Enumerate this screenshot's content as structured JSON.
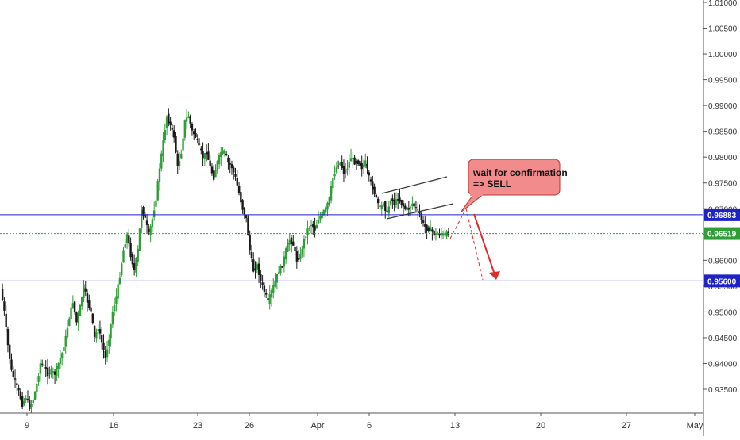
{
  "chart_data": {
    "type": "candlestick",
    "title": "",
    "xlabel": "",
    "ylabel": "",
    "ylim": [
      0.9315,
      1.0105
    ],
    "grid": false,
    "x_tick_labels": [
      "9",
      "16",
      "23",
      "26",
      "Apr",
      "6",
      "13",
      "20",
      "27",
      "May"
    ],
    "y_tick_labels": [
      "1.01000",
      "1.00500",
      "1.00000",
      "0.99500",
      "0.99000",
      "0.98500",
      "0.98000",
      "0.97500",
      "0.97000",
      "0.96500",
      "0.96000",
      "0.95500",
      "0.95000",
      "0.94500",
      "0.94000",
      "0.93500"
    ],
    "y_tick_values": [
      1.01,
      1.005,
      1.0,
      0.995,
      0.99,
      0.985,
      0.98,
      0.975,
      0.97,
      0.965,
      0.96,
      0.955,
      0.95,
      0.945,
      0.94,
      0.935
    ],
    "price_path": [
      0.9545,
      0.95,
      0.9435,
      0.9385,
      0.9365,
      0.9345,
      0.932,
      0.9335,
      0.9315,
      0.933,
      0.936,
      0.94,
      0.9395,
      0.938,
      0.9385,
      0.938,
      0.94,
      0.942,
      0.945,
      0.949,
      0.952,
      0.948,
      0.951,
      0.955,
      0.952,
      0.95,
      0.945,
      0.947,
      0.944,
      0.941,
      0.945,
      0.95,
      0.953,
      0.957,
      0.962,
      0.965,
      0.961,
      0.958,
      0.962,
      0.97,
      0.968,
      0.965,
      0.968,
      0.972,
      0.978,
      0.983,
      0.988,
      0.986,
      0.984,
      0.978,
      0.981,
      0.987,
      0.988,
      0.985,
      0.984,
      0.982,
      0.98,
      0.981,
      0.978,
      0.976,
      0.979,
      0.981,
      0.981,
      0.979,
      0.978,
      0.976,
      0.973,
      0.97,
      0.968,
      0.962,
      0.958,
      0.959,
      0.956,
      0.954,
      0.952,
      0.954,
      0.956,
      0.958,
      0.959,
      0.962,
      0.964,
      0.963,
      0.96,
      0.961,
      0.964,
      0.966,
      0.967,
      0.966,
      0.968,
      0.969,
      0.97,
      0.972,
      0.976,
      0.978,
      0.979,
      0.977,
      0.978,
      0.98,
      0.979,
      0.979,
      0.978,
      0.979,
      0.976,
      0.974,
      0.972,
      0.97,
      0.971,
      0.969,
      0.972,
      0.971,
      0.972,
      0.971,
      0.97,
      0.97,
      0.971,
      0.97,
      0.969,
      0.967,
      0.966,
      0.966,
      0.965,
      0.965,
      0.965,
      0.965,
      0.9652
    ],
    "x_span_weeks": [
      0,
      7.6
    ],
    "horizontal_levels": [
      {
        "value": 0.96883,
        "label": "0.96883",
        "color": "#1e22c7",
        "style": "solid"
      },
      {
        "value": 0.96519,
        "label": "0.96519",
        "color": "#2e9e36",
        "style": "dotted"
      },
      {
        "value": 0.956,
        "label": "0.95600",
        "color": "#1e22c7",
        "style": "solid"
      }
    ],
    "annotations": [
      {
        "type": "callout",
        "lines": [
          "wait for confirmation",
          "=> SELL"
        ],
        "bg": "#f28b8b"
      }
    ],
    "colors": {
      "up": "#2e9e36",
      "down": "#1a1a1a",
      "arrow": "#e02b2b"
    }
  }
}
